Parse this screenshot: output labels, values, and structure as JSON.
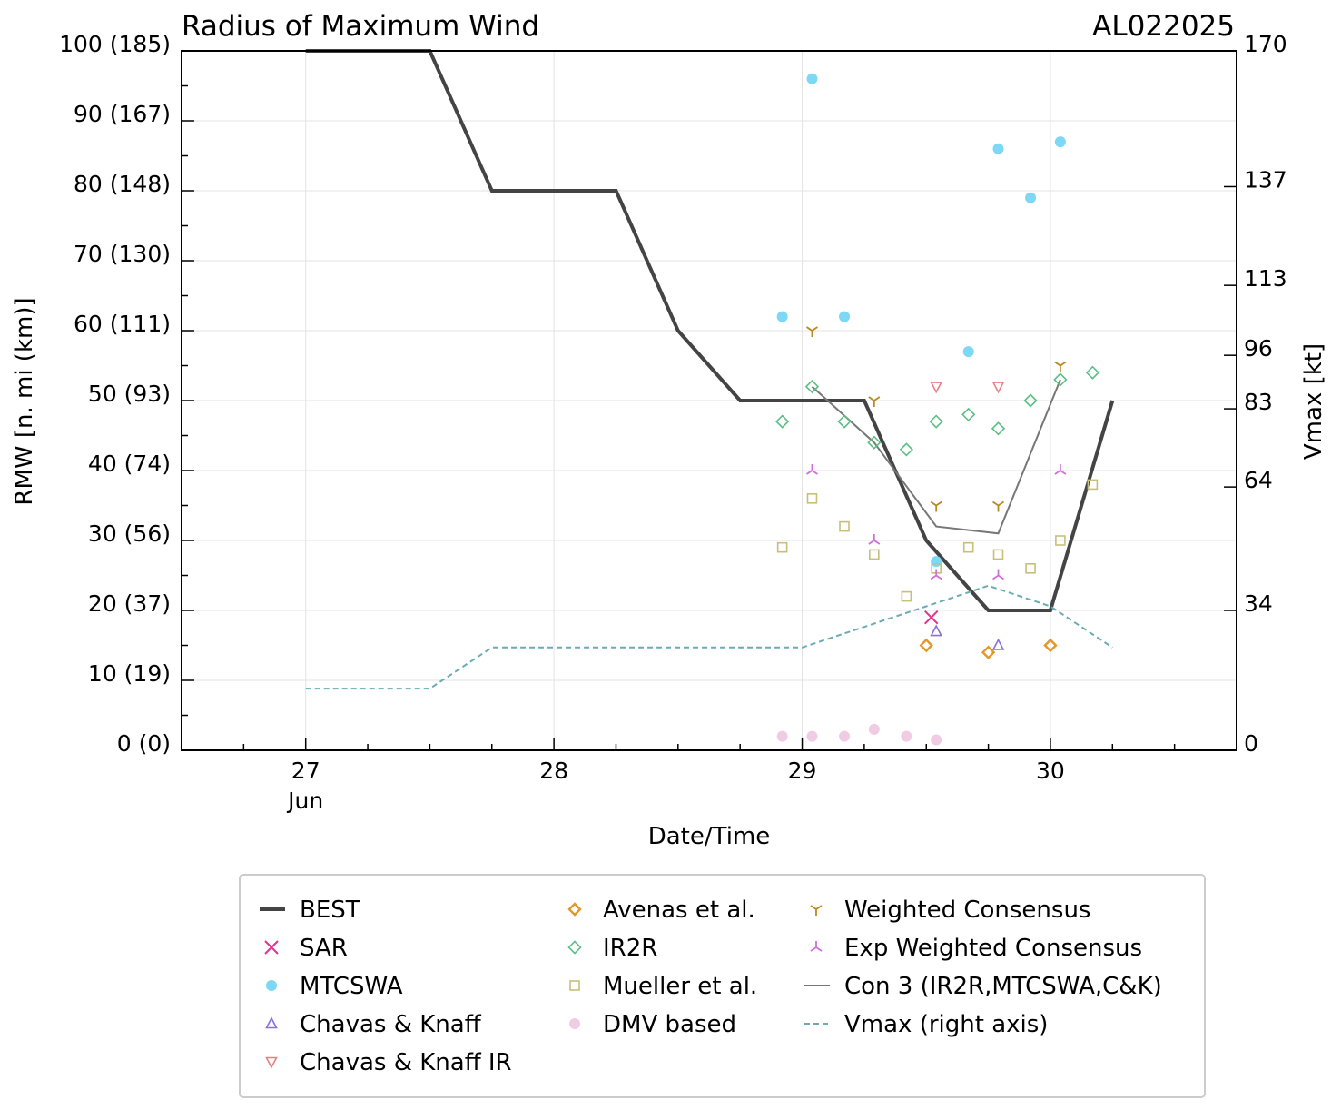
{
  "chart_data": {
    "type": "line",
    "title": "Radius of Maximum Wind",
    "storm_id": "AL022025",
    "xlabel": "Date/Time",
    "ylabel": "RMW [n. mi (km)]",
    "y2label": "Vmax [kt]",
    "xlim": [
      26.5,
      30.75
    ],
    "ylim": [
      0,
      100
    ],
    "y2lim": [
      0,
      170
    ],
    "x_ticks": [
      {
        "value": 27,
        "label": "27",
        "sublabel": "Jun"
      },
      {
        "value": 28,
        "label": "28",
        "sublabel": ""
      },
      {
        "value": 29,
        "label": "29",
        "sublabel": ""
      },
      {
        "value": 30,
        "label": "30",
        "sublabel": ""
      }
    ],
    "y_ticks": [
      {
        "value": 0,
        "label": "0 (0)"
      },
      {
        "value": 10,
        "label": "10 (19)"
      },
      {
        "value": 20,
        "label": "20 (37)"
      },
      {
        "value": 30,
        "label": "30 (56)"
      },
      {
        "value": 40,
        "label": "40 (74)"
      },
      {
        "value": 50,
        "label": "50 (93)"
      },
      {
        "value": 60,
        "label": "60 (111)"
      },
      {
        "value": 70,
        "label": "70 (130)"
      },
      {
        "value": 80,
        "label": "80 (148)"
      },
      {
        "value": 90,
        "label": "90 (167)"
      },
      {
        "value": 100,
        "label": "100 (185)"
      }
    ],
    "y2_ticks": [
      {
        "value": 0,
        "label": "0"
      },
      {
        "value": 34,
        "label": "34"
      },
      {
        "value": 64,
        "label": "64"
      },
      {
        "value": 83,
        "label": "83"
      },
      {
        "value": 96,
        "label": "96"
      },
      {
        "value": 113,
        "label": "113"
      },
      {
        "value": 137,
        "label": "137"
      },
      {
        "value": 170,
        "label": "170"
      }
    ],
    "series": [
      {
        "name": "BEST",
        "kind": "line",
        "color": "#444444",
        "axis": "left",
        "points": [
          [
            27.0,
            100
          ],
          [
            27.5,
            100
          ],
          [
            27.75,
            80
          ],
          [
            28.25,
            80
          ],
          [
            28.5,
            60
          ],
          [
            28.75,
            50
          ],
          [
            29.25,
            50
          ],
          [
            29.5,
            30
          ],
          [
            29.75,
            20
          ],
          [
            30.0,
            20
          ],
          [
            30.25,
            50
          ]
        ]
      },
      {
        "name": "SAR",
        "kind": "marker",
        "marker": "x",
        "color": "#e8308c",
        "axis": "left",
        "points": [
          [
            29.52,
            19
          ]
        ]
      },
      {
        "name": "MTCSWA",
        "kind": "marker",
        "marker": "circle",
        "color": "#7dd8f5",
        "axis": "left",
        "points": [
          [
            28.92,
            62
          ],
          [
            29.04,
            96
          ],
          [
            29.17,
            62
          ],
          [
            29.54,
            27
          ],
          [
            29.67,
            57
          ],
          [
            29.79,
            86
          ],
          [
            29.92,
            79
          ],
          [
            30.04,
            87
          ]
        ]
      },
      {
        "name": "Chavas & Knaff",
        "kind": "marker",
        "marker": "triangle-up",
        "color": "#8b6fe0",
        "axis": "left",
        "points": [
          [
            29.54,
            17
          ],
          [
            29.79,
            15
          ]
        ]
      },
      {
        "name": "Chavas & Knaff IR",
        "kind": "marker",
        "marker": "triangle-down",
        "color": "#e88080",
        "axis": "left",
        "points": [
          [
            29.54,
            52
          ],
          [
            29.79,
            52
          ]
        ]
      },
      {
        "name": "Avenas et al.",
        "kind": "marker",
        "marker": "diamond",
        "color": "#e3962a",
        "axis": "left",
        "points": [
          [
            29.5,
            15
          ],
          [
            29.75,
            14
          ],
          [
            30.0,
            15
          ]
        ]
      },
      {
        "name": "IR2R",
        "kind": "marker",
        "marker": "diamond-open",
        "color": "#5cbf85",
        "axis": "left",
        "points": [
          [
            28.92,
            47
          ],
          [
            29.04,
            52
          ],
          [
            29.17,
            47
          ],
          [
            29.29,
            44
          ],
          [
            29.42,
            43
          ],
          [
            29.54,
            47
          ],
          [
            29.67,
            48
          ],
          [
            29.79,
            46
          ],
          [
            29.92,
            50
          ],
          [
            30.04,
            53
          ],
          [
            30.17,
            54
          ]
        ]
      },
      {
        "name": "Mueller et al.",
        "kind": "marker",
        "marker": "square-open",
        "color": "#c8bf78",
        "axis": "left",
        "points": [
          [
            28.92,
            29
          ],
          [
            29.04,
            36
          ],
          [
            29.17,
            32
          ],
          [
            29.29,
            28
          ],
          [
            29.42,
            22
          ],
          [
            29.54,
            26
          ],
          [
            29.67,
            29
          ],
          [
            29.79,
            28
          ],
          [
            29.92,
            26
          ],
          [
            30.04,
            30
          ],
          [
            30.17,
            38
          ]
        ]
      },
      {
        "name": "DMV based",
        "kind": "marker",
        "marker": "circle",
        "color": "#f0cce4",
        "axis": "left",
        "points": [
          [
            28.92,
            2
          ],
          [
            29.04,
            2
          ],
          [
            29.17,
            2
          ],
          [
            29.29,
            3
          ],
          [
            29.42,
            2
          ],
          [
            29.54,
            1.5
          ]
        ]
      },
      {
        "name": "Weighted Consensus",
        "kind": "marker",
        "marker": "tri-down",
        "color": "#b8891f",
        "axis": "left",
        "points": [
          [
            29.04,
            60
          ],
          [
            29.29,
            50
          ],
          [
            29.54,
            35
          ],
          [
            29.79,
            35
          ],
          [
            30.04,
            55
          ]
        ]
      },
      {
        "name": "Exp Weighted Consensus",
        "kind": "marker",
        "marker": "tri-up",
        "color": "#d070d8",
        "axis": "left",
        "points": [
          [
            29.04,
            40
          ],
          [
            29.29,
            30
          ],
          [
            29.54,
            25
          ],
          [
            29.79,
            25
          ],
          [
            30.04,
            40
          ]
        ]
      },
      {
        "name": "Con 3 (IR2R,MTCSWA,C&K)",
        "kind": "line",
        "color": "#777777",
        "axis": "left",
        "points": [
          [
            29.04,
            52
          ],
          [
            29.29,
            44
          ],
          [
            29.54,
            32
          ],
          [
            29.79,
            31
          ],
          [
            30.04,
            53
          ]
        ]
      },
      {
        "name": "Vmax (right axis)",
        "kind": "dashed-line",
        "color": "#6aacb5",
        "axis": "right",
        "points": [
          [
            27.0,
            15
          ],
          [
            27.5,
            15
          ],
          [
            27.75,
            25
          ],
          [
            29.0,
            25
          ],
          [
            29.5,
            35
          ],
          [
            29.75,
            40
          ],
          [
            30.0,
            35
          ],
          [
            30.25,
            25
          ]
        ]
      }
    ],
    "legend": {
      "placement": "below",
      "columns": [
        [
          "BEST",
          "SAR",
          "MTCSWA",
          "Chavas & Knaff",
          "Chavas & Knaff IR"
        ],
        [
          "Avenas et al.",
          "IR2R",
          "Mueller et al.",
          "DMV based"
        ],
        [
          "Weighted Consensus",
          "Exp Weighted Consensus",
          "Con 3 (IR2R,MTCSWA,C&K)",
          "Vmax (right axis)"
        ]
      ]
    }
  }
}
